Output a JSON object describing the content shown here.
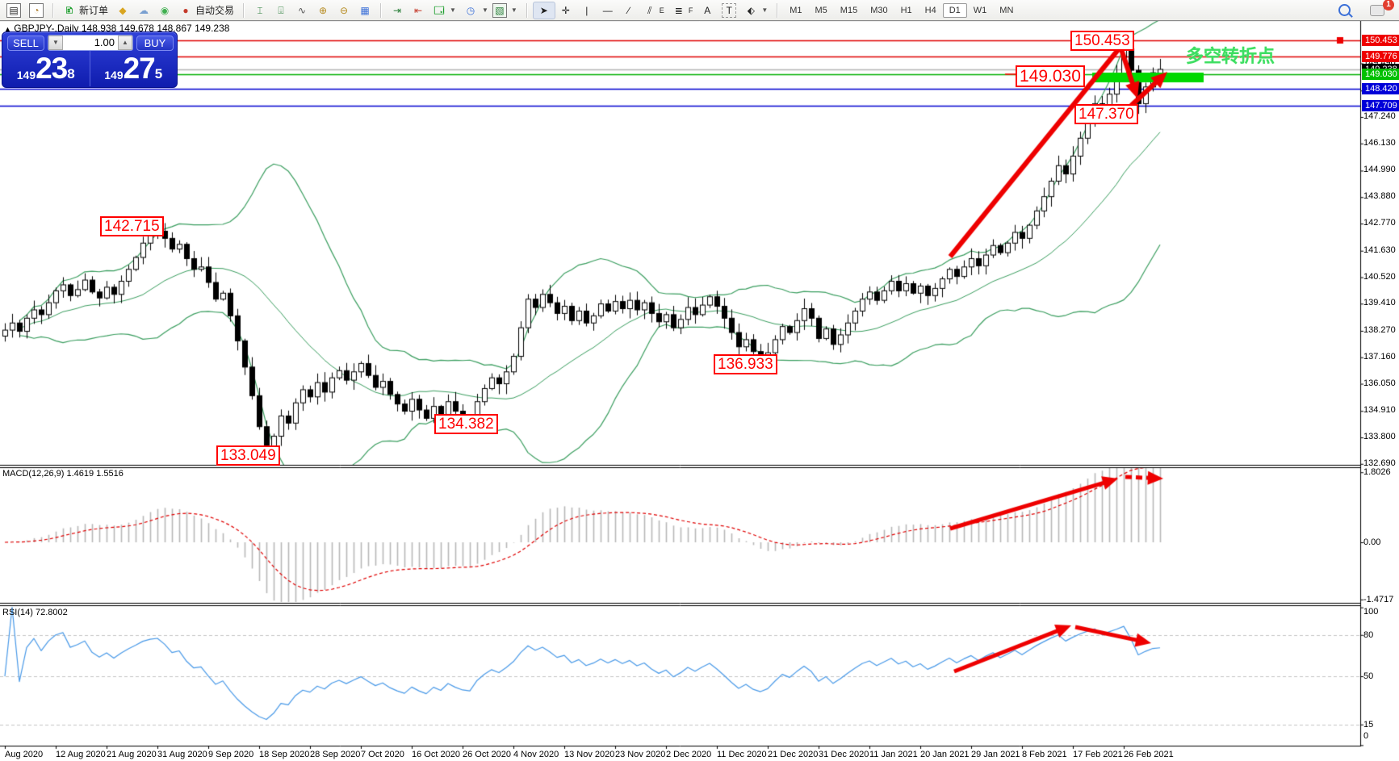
{
  "toolbar": {
    "new_order_label": "新订单",
    "auto_trading_label": "自动交易",
    "timeframes": [
      "M1",
      "M5",
      "M15",
      "M30",
      "H1",
      "H4",
      "D1",
      "W1",
      "MN"
    ],
    "active_timeframe": "D1",
    "chat_badge": "1",
    "tool_labels": {
      "channel": "E",
      "fibo": "F",
      "text": "A",
      "label": "T"
    }
  },
  "chart_header": {
    "collapse_icon": "▲",
    "symbol": "GBPJPY-,Daily",
    "open": "148.938",
    "high": "149.678",
    "low": "148.867",
    "close": "149.238"
  },
  "trade_panel": {
    "sell_label": "SELL",
    "buy_label": "BUY",
    "volume": "1.00",
    "sell_prefix": "149",
    "sell_big": "23",
    "sell_sup": "8",
    "buy_prefix": "149",
    "buy_big": "27",
    "buy_sup": "5"
  },
  "indicator_headers": {
    "macd": "MACD(12,26,9) 1.4619 1.5516",
    "rsi": "RSI(14) 72.8002"
  },
  "price_axis": {
    "plain_ticks": [
      149.49,
      148.35,
      147.24,
      146.13,
      144.99,
      143.88,
      142.77,
      141.63,
      140.52,
      139.41,
      138.27,
      137.16,
      136.05,
      134.91,
      133.8,
      132.69
    ],
    "bid_label": {
      "text": "149.238",
      "value": 149.238,
      "bg": "#000000"
    },
    "highlight_labels": [
      {
        "text": "150.453",
        "value": 150.453,
        "bg": "#ee0000"
      },
      {
        "text": "149.776",
        "value": 149.776,
        "bg": "#ee0000"
      },
      {
        "text": "149.030",
        "value": 149.03,
        "bg": "#00c000"
      },
      {
        "text": "148.420",
        "value": 148.42,
        "bg": "#0000d8"
      },
      {
        "text": "147.709",
        "value": 147.709,
        "bg": "#0000d8"
      }
    ]
  },
  "macd_axis": [
    {
      "label": "1.8026",
      "value": 1.8026
    },
    {
      "label": "0.00",
      "value": 0
    },
    {
      "label": "-1.4717",
      "value": -1.4717
    }
  ],
  "rsi_axis": [
    {
      "label": "100",
      "value": 100
    },
    {
      "label": "80",
      "value": 80
    },
    {
      "label": "50",
      "value": 50
    },
    {
      "label": "15",
      "value": 15
    },
    {
      "label": "0",
      "value": 0
    }
  ],
  "dates": [
    "Aug 2020",
    "12 Aug 2020",
    "21 Aug 2020",
    "31 Aug 2020",
    "9 Sep 2020",
    "18 Sep 2020",
    "28 Sep 2020",
    "7 Oct 2020",
    "16 Oct 2020",
    "26 Oct 2020",
    "4 Nov 2020",
    "13 Nov 2020",
    "23 Nov 2020",
    "2 Dec 2020",
    "11 Dec 2020",
    "21 Dec 2020",
    "31 Dec 2020",
    "11 Jan 2021",
    "20 Jan 2021",
    "29 Jan 2021",
    "8 Feb 2021",
    "17 Feb 2021",
    "26 Feb 2021"
  ],
  "annotations": {
    "note_cn": "多空转折点",
    "boxes": [
      {
        "text": "150.453"
      },
      {
        "text": "149.030"
      },
      {
        "text": "147.370"
      },
      {
        "text": "142.715"
      },
      {
        "text": "136.933"
      },
      {
        "text": "134.382"
      },
      {
        "text": "133.049"
      }
    ]
  },
  "chart_data": {
    "type": "candlestick",
    "title": "GBPJPY- Daily",
    "symbol": "GBPJPY",
    "timeframe": "Daily",
    "x_range": [
      "Aug 2020",
      "Feb 2021"
    ],
    "ylim": [
      132.69,
      151.3
    ],
    "grid": false,
    "closes": [
      138.3,
      138.6,
      138.25,
      138.8,
      139.15,
      138.95,
      139.45,
      139.95,
      140.2,
      139.75,
      140.0,
      140.4,
      139.9,
      139.65,
      140.1,
      139.8,
      140.35,
      140.85,
      141.35,
      141.95,
      142.3,
      142.45,
      142.15,
      141.7,
      141.9,
      141.3,
      140.85,
      140.95,
      140.3,
      139.6,
      139.85,
      138.9,
      137.85,
      136.75,
      135.55,
      134.25,
      133.35,
      133.85,
      134.7,
      134.4,
      135.25,
      135.8,
      135.5,
      136.1,
      135.7,
      136.3,
      136.6,
      136.2,
      136.55,
      136.9,
      136.4,
      135.9,
      136.15,
      135.6,
      135.2,
      134.9,
      135.4,
      134.95,
      134.6,
      135.1,
      134.75,
      135.3,
      134.9,
      134.6,
      134.5,
      135.3,
      135.85,
      136.3,
      136.05,
      136.55,
      137.2,
      138.4,
      139.6,
      139.25,
      139.8,
      139.45,
      139.0,
      139.3,
      138.7,
      139.1,
      138.6,
      138.9,
      139.4,
      139.1,
      139.5,
      139.2,
      139.55,
      139.15,
      139.45,
      139.0,
      138.65,
      138.95,
      138.4,
      138.75,
      139.25,
      138.95,
      139.35,
      139.7,
      139.3,
      138.8,
      138.2,
      137.6,
      137.9,
      137.4,
      137.15,
      137.35,
      137.9,
      138.45,
      138.2,
      138.7,
      139.2,
      138.8,
      137.95,
      138.35,
      137.7,
      138.1,
      138.6,
      139.1,
      139.6,
      139.9,
      139.55,
      139.95,
      140.35,
      139.95,
      140.25,
      139.85,
      140.15,
      139.75,
      140.05,
      140.45,
      140.85,
      140.55,
      140.95,
      141.3,
      141.0,
      141.45,
      141.85,
      141.55,
      141.95,
      142.4,
      142.15,
      142.7,
      143.3,
      143.9,
      144.55,
      145.2,
      144.85,
      145.6,
      146.35,
      147.1,
      147.8,
      147.45,
      148.2,
      149.0,
      150.1,
      149.2,
      147.8,
      148.5,
      149.1,
      149.24
    ],
    "key_candles": {
      "21": {
        "high": 142.715
      },
      "36": {
        "low": 133.049
      },
      "64": {
        "low": 134.382
      },
      "104": {
        "low": 136.933
      },
      "154": {
        "high": 150.453
      },
      "156": {
        "low": 147.37
      },
      "159": {
        "open": 148.938,
        "high": 149.678,
        "low": 148.867,
        "close": 149.238
      }
    },
    "levels": [
      {
        "price": 150.453,
        "color": "#e00000"
      },
      {
        "price": 149.776,
        "color": "#e00000"
      },
      {
        "price": 149.238,
        "color": "#b4b4b4"
      },
      {
        "price": 149.03,
        "color": "#00b000"
      },
      {
        "price": 148.42,
        "color": "#0000d0"
      },
      {
        "price": 147.709,
        "color": "#0000d0"
      }
    ],
    "highlight_zone": {
      "price_top": 149.1,
      "price_bottom": 148.82,
      "color": "#00d800"
    },
    "indicators": [
      {
        "name": "Bollinger Bands",
        "period": 20,
        "deviation": 2,
        "color": "#3a9e5f"
      },
      {
        "name": "MACD",
        "fast": 12,
        "slow": 26,
        "signal": 9,
        "current": 1.4619,
        "signal_value": 1.5516,
        "range": [
          -1.4717,
          1.8026
        ]
      },
      {
        "name": "RSI",
        "period": 14,
        "current": 72.8002,
        "levels": [
          80,
          50,
          15
        ]
      }
    ]
  }
}
